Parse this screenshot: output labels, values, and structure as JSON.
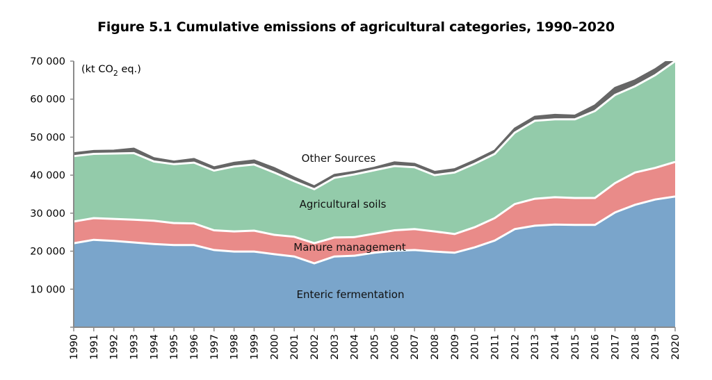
{
  "chart_data": {
    "type": "area",
    "stacked": true,
    "title": "Figure 5.1 Cumulative emissions of agricultural categories, 1990–2020",
    "unit_label": {
      "prefix": "(kt CO",
      "subscript": "2",
      "suffix": " eq.)"
    },
    "xlabel": "",
    "ylabel": "",
    "ylim": [
      0,
      70000
    ],
    "yticks": [
      10000,
      20000,
      30000,
      40000,
      50000,
      60000,
      70000
    ],
    "ytick_labels": [
      "10 000",
      "20 000",
      "30 000",
      "40 000",
      "50 000",
      "60 000",
      "70 000"
    ],
    "x": [
      "1990",
      "1991",
      "1992",
      "1993",
      "1994",
      "1995",
      "1996",
      "1997",
      "1998",
      "1999",
      "2000",
      "2001",
      "2002",
      "2003",
      "2004",
      "2005",
      "2006",
      "2007",
      "2008",
      "2009",
      "2010",
      "2011",
      "2012",
      "2013",
      "2014",
      "2015",
      "2016",
      "2017",
      "2018",
      "2019",
      "2020"
    ],
    "grid": false,
    "legend": "inline labels",
    "series": [
      {
        "name": "Enteric fermentation",
        "color": "#7aa5cb",
        "values": [
          22100,
          23000,
          22700,
          22300,
          21900,
          21600,
          21600,
          20300,
          19900,
          19900,
          19200,
          18600,
          16800,
          18600,
          18800,
          19600,
          20100,
          20300,
          19900,
          19600,
          21000,
          22800,
          25800,
          26700,
          27000,
          26900,
          26900,
          30200,
          32200,
          33600,
          34400
        ]
      },
      {
        "name": "Manure management",
        "color": "#e98b89",
        "values": [
          5700,
          5700,
          5800,
          6000,
          6100,
          5800,
          5700,
          5200,
          5300,
          5500,
          5100,
          5200,
          5300,
          5000,
          4900,
          5000,
          5400,
          5500,
          5300,
          4900,
          5300,
          5900,
          6600,
          7100,
          7200,
          7100,
          7100,
          7700,
          8500,
          8300,
          9100
        ]
      },
      {
        "name": "Agricultural soils",
        "color": "#93cbaa",
        "values": [
          17200,
          16900,
          17200,
          17500,
          15600,
          15500,
          16000,
          15700,
          17100,
          17400,
          16400,
          14600,
          14200,
          15700,
          16500,
          16700,
          16900,
          16300,
          14800,
          16200,
          16700,
          16900,
          18800,
          20500,
          20500,
          20700,
          22900,
          23200,
          22700,
          24400,
          26500
        ]
      },
      {
        "name": "Other Sources",
        "color": "#666666",
        "values": [
          800,
          800,
          800,
          1200,
          900,
          700,
          1000,
          900,
          1000,
          1100,
          1200,
          1000,
          800,
          800,
          700,
          700,
          1000,
          900,
          900,
          900,
          900,
          900,
          1100,
          1100,
          1200,
          1000,
          1500,
          1900,
          1600,
          1600,
          1500
        ]
      }
    ]
  }
}
